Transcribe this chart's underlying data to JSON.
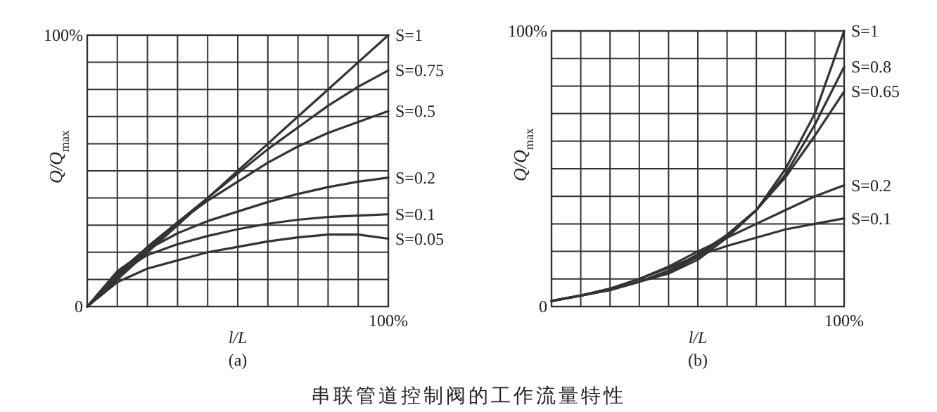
{
  "chart_data": [
    {
      "type": "line",
      "title": "(a)",
      "xlabel": "l/L",
      "ylabel": "Q/Q$_{max}$",
      "grid": true,
      "annotations": [
        "100%",
        "串联管道控制阀的工作流量特性"
      ],
      "categories": [
        null,
        null,
        null,
        null,
        null,
        null,
        null,
        null,
        null,
        null,
        null
      ],
      "ylim": [
        0,
        100
      ],
      "yticks": [
        {
          "value": 0,
          "label": "0"
        },
        {
          "value": 10,
          "label": null
        },
        {
          "value": 20,
          "label": null
        },
        {
          "value": 30,
          "label": null
        },
        {
          "value": 40,
          "label": null
        },
        {
          "value": 50,
          "label": null
        },
        {
          "value": 60,
          "label": null
        },
        {
          "value": 70,
          "label": null
        },
        {
          "value": 80,
          "label": null
        },
        {
          "value": 90,
          "label": null
        },
        {
          "value": 100,
          "label": "100%"
        }
      ],
      "series": [
        {
          "name": "S=1",
          "color": "#333333",
          "values": [
            0,
            10,
            20,
            30,
            40,
            50,
            60,
            70,
            80,
            90,
            100
          ]
        },
        {
          "name": "S=0.75",
          "color": "#333333",
          "values": [
            0,
            11,
            21,
            31,
            40,
            49,
            58,
            66,
            74,
            81,
            87
          ]
        },
        {
          "name": "S=0.5",
          "color": "#333333",
          "values": [
            0,
            12,
            22,
            31,
            39,
            46,
            53,
            59,
            64,
            68,
            72
          ]
        },
        {
          "name": "S=0.2",
          "color": "#333333",
          "values": [
            0,
            13,
            21,
            27,
            31.5,
            35,
            38.5,
            41.5,
            44,
            46,
            47.5
          ]
        },
        {
          "name": "S=0.1",
          "color": "#333333",
          "values": [
            0,
            12,
            19,
            23,
            26,
            28.5,
            30.5,
            32,
            33,
            33.5,
            34
          ]
        },
        {
          "name": "S=0.05",
          "color": "#333333",
          "values": [
            0,
            9,
            14,
            17,
            20,
            22,
            24,
            25.5,
            26.5,
            26.5,
            25
          ]
        }
      ]
    },
    {
      "type": "line",
      "title": "(b)",
      "xlabel": "l/L",
      "ylabel": "Q/Q$_{max}$",
      "grid": true,
      "annotations": [
        "100%"
      ],
      "categories": [
        null,
        null,
        null,
        null,
        null,
        null,
        null,
        null,
        null,
        null,
        null
      ],
      "ylim": [
        0,
        100
      ],
      "yticks": [
        {
          "value": 0,
          "label": "0"
        },
        {
          "value": 10,
          "label": null
        },
        {
          "value": 20,
          "label": null
        },
        {
          "value": 30,
          "label": null
        },
        {
          "value": 40,
          "label": null
        },
        {
          "value": 50,
          "label": null
        },
        {
          "value": 60,
          "label": null
        },
        {
          "value": 70,
          "label": null
        },
        {
          "value": 80,
          "label": null
        },
        {
          "value": 90,
          "label": null
        },
        {
          "value": 100,
          "label": "100%"
        }
      ],
      "series": [
        {
          "name": "S=1",
          "color": "#333333",
          "values": [
            2,
            4,
            6,
            9,
            12,
            17,
            25,
            35,
            50,
            70,
            100
          ]
        },
        {
          "name": "S=0.8",
          "color": "#333333",
          "values": [
            2,
            4,
            6,
            9,
            12.5,
            18,
            26,
            35,
            48,
            66,
            87
          ]
        },
        {
          "name": "S=0.65",
          "color": "#333333",
          "values": [
            2,
            4,
            6,
            9,
            13,
            19,
            26,
            35,
            47,
            62,
            78
          ]
        },
        {
          "name": "S=0.2",
          "color": "#333333",
          "values": [
            2,
            4,
            6.5,
            10,
            14.5,
            20,
            25,
            30,
            35,
            40,
            44
          ]
        },
        {
          "name": "S=0.1",
          "color": "#333333",
          "values": [
            2,
            4,
            6.5,
            10,
            14,
            18.5,
            22,
            25,
            28,
            30,
            32
          ]
        }
      ]
    }
  ]
}
